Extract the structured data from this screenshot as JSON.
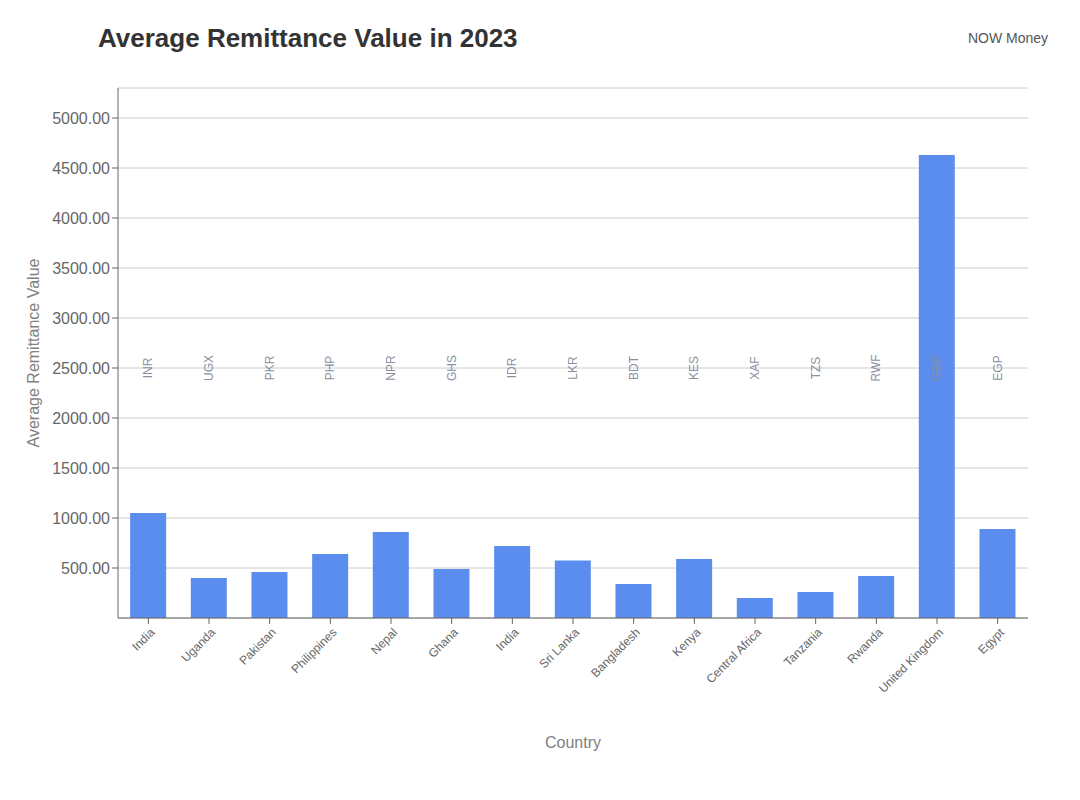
{
  "chart_data": {
    "type": "bar",
    "title": "Average Remittance Value in 2023",
    "x_label": "Country",
    "y_label": "Average Remittance Value",
    "categories": [
      "India",
      "Uganda",
      "Pakistan",
      "Philippines",
      "Nepal",
      "Ghana",
      "India",
      "Sri Lanka",
      "Bangladesh",
      "Kenya",
      "Central Africa",
      "Tanzania",
      "Rwanda",
      "United Kingdom",
      "Egypt"
    ],
    "values": [
      1050,
      400,
      460,
      640,
      860,
      490,
      720,
      575,
      340,
      590,
      200,
      260,
      420,
      4630,
      890
    ],
    "color": "#5b8def",
    "ylim": [
      0,
      5300
    ],
    "yticks": [
      {
        "value": 500,
        "label": "500.00"
      },
      {
        "value": 1000,
        "label": "1000.00"
      },
      {
        "value": 1500,
        "label": "1500.00"
      },
      {
        "value": 2000,
        "label": "2000.00"
      },
      {
        "value": 2500,
        "label": "2500.00"
      },
      {
        "value": 3000,
        "label": "3000.00"
      },
      {
        "value": 3500,
        "label": "3500.00"
      },
      {
        "value": 4000,
        "label": "4000.00"
      },
      {
        "value": 4500,
        "label": "4500.00"
      },
      {
        "value": 5000,
        "label": "5000.00"
      }
    ],
    "grid": true,
    "annotations": [
      {
        "text": "INR",
        "category": "India",
        "y": 2500
      },
      {
        "text": "UGX",
        "category": "Uganda",
        "y": 2500
      },
      {
        "text": "PKR",
        "category": "Pakistan",
        "y": 2500
      },
      {
        "text": "PHP",
        "category": "Philippines",
        "y": 2500
      },
      {
        "text": "NPR",
        "category": "Nepal",
        "y": 2500
      },
      {
        "text": "GHS",
        "category": "Ghana",
        "y": 2500
      },
      {
        "text": "IDR",
        "category": "India",
        "y": 2500
      },
      {
        "text": "LKR",
        "category": "Sri Lanka",
        "y": 2500
      },
      {
        "text": "BDT",
        "category": "Bangladesh",
        "y": 2500
      },
      {
        "text": "KES",
        "category": "Kenya",
        "y": 2500
      },
      {
        "text": "XAF",
        "category": "Central Africa",
        "y": 2500
      },
      {
        "text": "TZS",
        "category": "Tanzania",
        "y": 2500
      },
      {
        "text": "RWF",
        "category": "Rwanda",
        "y": 2500
      },
      {
        "text": "GBP",
        "category": "United Kingdom",
        "y": 2500
      },
      {
        "text": "EGP",
        "category": "Egypt",
        "y": 2500
      },
      {
        "text": "NOW Money"
      }
    ]
  }
}
